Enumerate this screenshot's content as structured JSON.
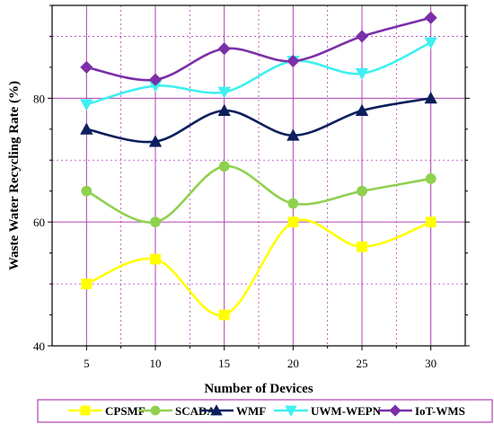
{
  "chart_data": {
    "type": "line",
    "title": "",
    "xlabel": "Number of Devices",
    "ylabel": "Waste Water Recycling Rate (%)",
    "x": [
      5,
      10,
      15,
      20,
      25,
      30
    ],
    "xlim": [
      2.5,
      32.5
    ],
    "ylim": [
      40,
      95
    ],
    "xticks": [
      "5",
      "10",
      "15",
      "20",
      "25",
      "30"
    ],
    "yticks": [
      "40",
      "60",
      "80"
    ],
    "grid": true,
    "legend_position": "bottom",
    "series": [
      {
        "name": "CPSMF",
        "values": [
          50,
          54,
          45,
          60,
          56,
          60
        ],
        "color": "#ffff00",
        "marker": "square"
      },
      {
        "name": "SCADA",
        "values": [
          65,
          60,
          69,
          63,
          65,
          67
        ],
        "color": "#8fd14f",
        "marker": "circle"
      },
      {
        "name": "WMF",
        "values": [
          75,
          73,
          78,
          74,
          78,
          80
        ],
        "color": "#0a1f5c",
        "marker": "triangle-up"
      },
      {
        "name": "UWM-WEPN",
        "values": [
          79,
          82,
          81,
          86,
          84,
          89
        ],
        "color": "#3ff0f0",
        "marker": "triangle-down"
      },
      {
        "name": "IoT-WMS",
        "values": [
          85,
          83,
          88,
          86,
          90,
          93
        ],
        "color": "#7b2fa8",
        "marker": "diamond"
      }
    ],
    "colors": {
      "grid": "#b040b0",
      "ylabel": "#800080"
    }
  }
}
